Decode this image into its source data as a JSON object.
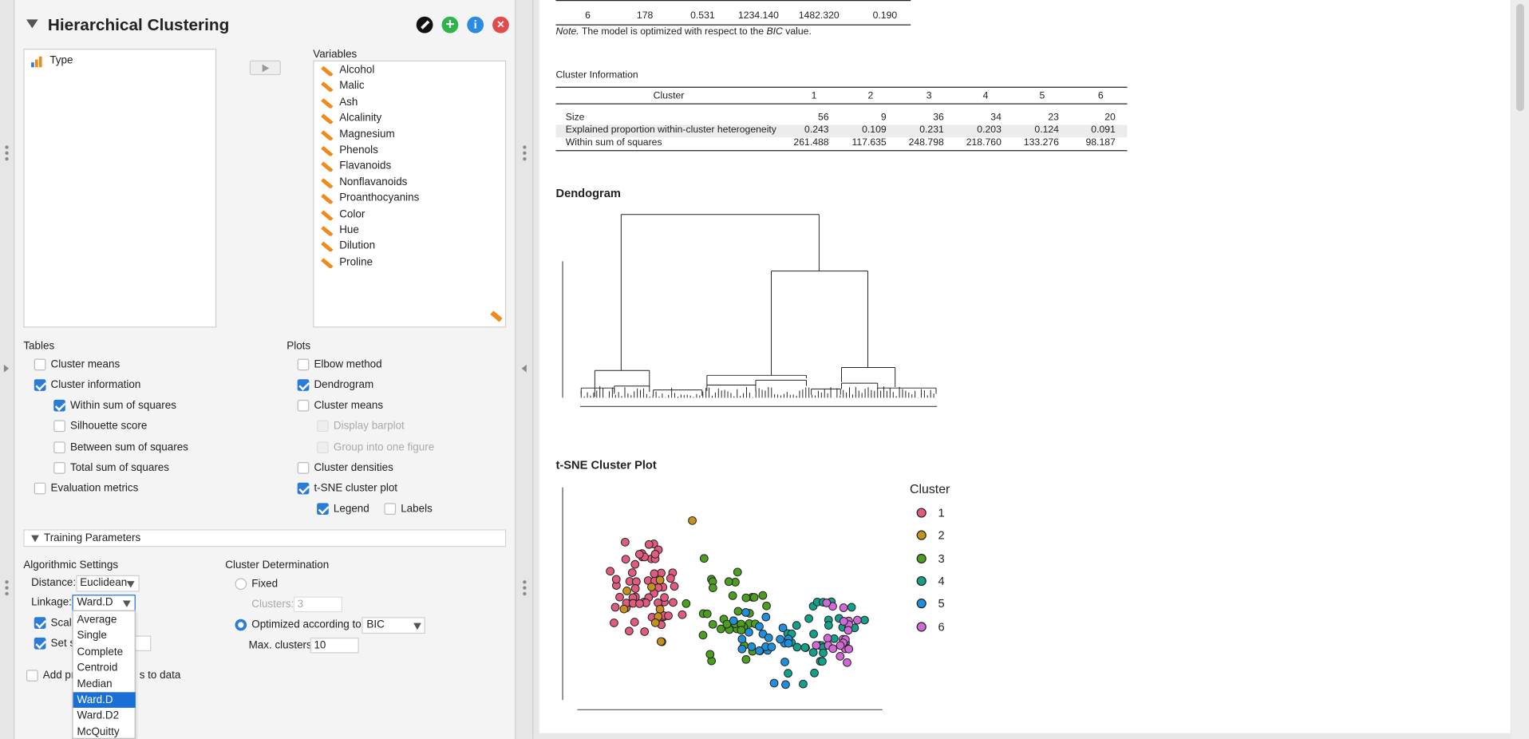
{
  "analysis": {
    "title": "Hierarchical Clustering"
  },
  "header_icons": [
    "edit-icon",
    "add-icon",
    "info-icon",
    "close-icon"
  ],
  "variables_panel": {
    "left_items": [
      {
        "label": "Type",
        "icon": "nominal-icon"
      }
    ],
    "right_title": "Variables",
    "right_items": [
      "Alcohol",
      "Malic",
      "Ash",
      "Alcalinity",
      "Magnesium",
      "Phenols",
      "Flavanoids",
      "Nonflavanoids",
      "Proanthocyanins",
      "Color",
      "Hue",
      "Dilution",
      "Proline"
    ]
  },
  "tables_section": {
    "title": "Tables",
    "cluster_means": "Cluster means",
    "cluster_information": "Cluster information",
    "within_ss": "Within sum of squares",
    "silhouette": "Silhouette score",
    "between_ss": "Between sum of squares",
    "total_ss": "Total sum of squares",
    "evaluation": "Evaluation metrics"
  },
  "plots_section": {
    "title": "Plots",
    "elbow": "Elbow method",
    "dendrogram": "Dendrogram",
    "cluster_means": "Cluster means",
    "display_barplot": "Display barplot",
    "group_one_figure": "Group into one figure",
    "cluster_densities": "Cluster densities",
    "tsne": "t-SNE cluster plot",
    "legend": "Legend",
    "labels": "Labels"
  },
  "training": {
    "header": "Training Parameters",
    "algo_title": "Algorithmic Settings",
    "distance_label": "Distance:",
    "distance_value": "Euclidean",
    "linkage_label": "Linkage:",
    "linkage_value": "Ward.D",
    "scale_label_partial": "Scal",
    "seed_label_partial": "Set s",
    "add_predictions_left": "Add pr",
    "add_predictions_right": "s to data",
    "linkage_options": [
      "Average",
      "Single",
      "Complete",
      "Centroid",
      "Median",
      "Ward.D",
      "Ward.D2",
      "McQuitty"
    ],
    "cluster_det_title": "Cluster Determination",
    "fixed_label": "Fixed",
    "clusters_label": "Clusters:",
    "clusters_value": "3",
    "optimized_label": "Optimized according to",
    "optimized_value": "BIC",
    "max_clusters_label": "Max. clusters:",
    "max_clusters_value": "10"
  },
  "results": {
    "top_row": [
      "6",
      "178",
      "0.531",
      "1234.140",
      "1482.320",
      "0.190"
    ],
    "note_prefix": "Note.",
    "note_mid": " The model is optimized with respect to the ",
    "note_em": "BIC",
    "note_suffix": " value.",
    "cluster_info": {
      "title": "Cluster Information",
      "header_label": "Cluster",
      "columns": [
        "1",
        "2",
        "3",
        "4",
        "5",
        "6"
      ],
      "rows": [
        {
          "label": "Size",
          "values": [
            "56",
            "9",
            "36",
            "34",
            "23",
            "20"
          ]
        },
        {
          "label": "Explained proportion within-cluster heterogeneity",
          "values": [
            "0.243",
            "0.109",
            "0.231",
            "0.203",
            "0.124",
            "0.091"
          ]
        },
        {
          "label": "Within sum of squares",
          "values": [
            "261.488",
            "117.635",
            "248.798",
            "218.760",
            "133.276",
            "98.187"
          ]
        }
      ]
    },
    "dendrogram_title": "Dendogram",
    "tsne_title": "t-SNE Cluster Plot",
    "legend_title": "Cluster",
    "legend": [
      {
        "label": "1",
        "color": "#e05b7e"
      },
      {
        "label": "2",
        "color": "#c6901d"
      },
      {
        "label": "3",
        "color": "#4c9e1f"
      },
      {
        "label": "4",
        "color": "#13a08a"
      },
      {
        "label": "5",
        "color": "#1f8fdc"
      },
      {
        "label": "6",
        "color": "#d267d6"
      }
    ]
  },
  "colors": {
    "accent": "#2b7bd8",
    "selected": "#1a6fd6",
    "close": "#e14b4b",
    "add": "#2eb54a",
    "info": "#2b8ae2"
  }
}
